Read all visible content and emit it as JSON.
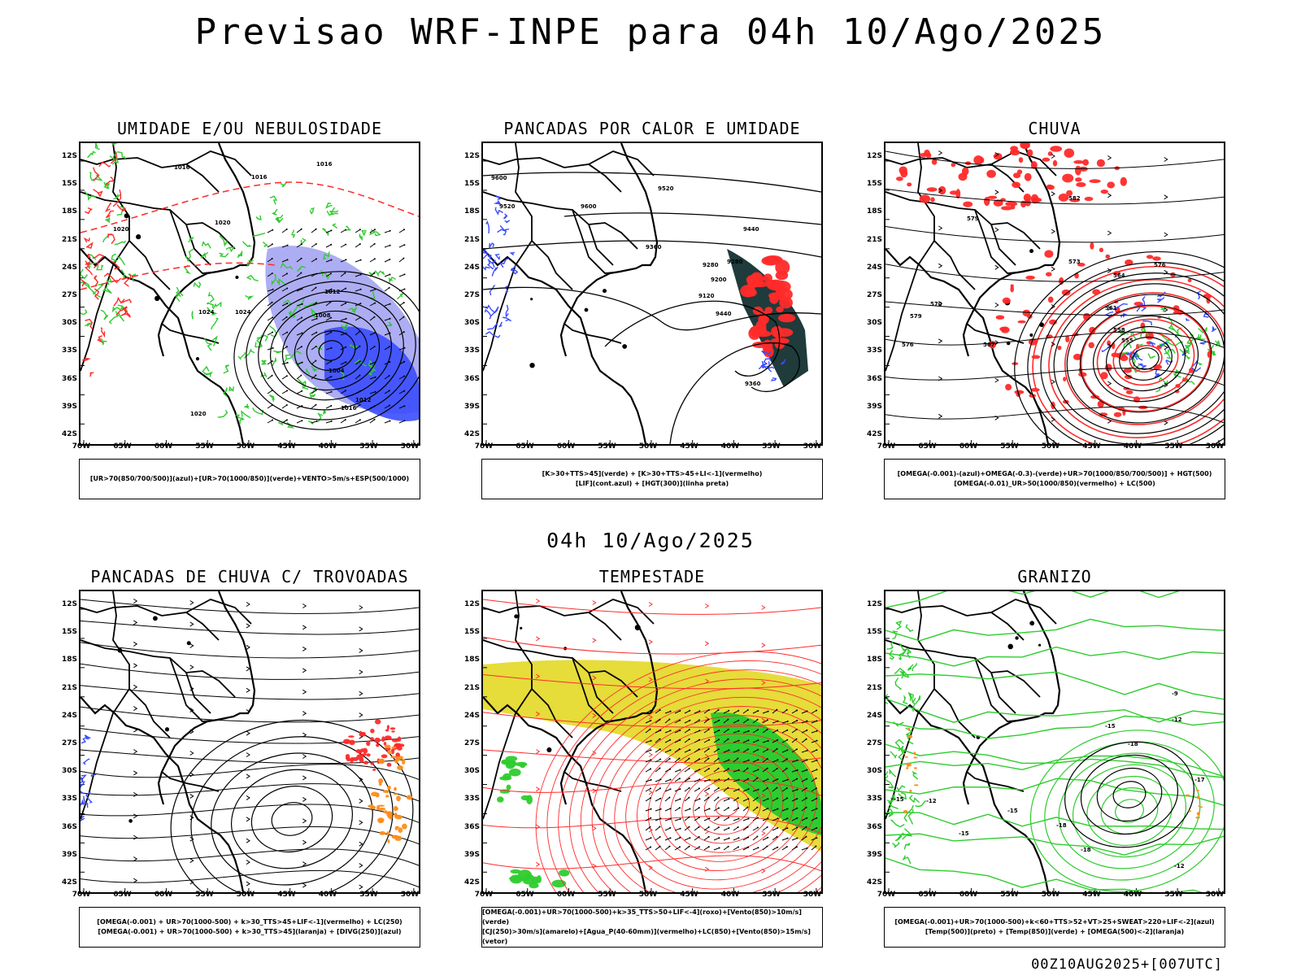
{
  "header": {
    "title": "Previsao WRF-INPE  para 04h 10/Ago/2025"
  },
  "middle": {
    "title": "04h 10/Ago/2025"
  },
  "footer": {
    "run": "00Z10AUG2025+[007UTC]"
  },
  "axes": {
    "lat_labels": [
      "12S",
      "15S",
      "18S",
      "21S",
      "24S",
      "27S",
      "30S",
      "33S",
      "36S",
      "39S",
      "42S"
    ],
    "lon_labels": [
      "70W",
      "65W",
      "60W",
      "55W",
      "50W",
      "45W",
      "40W",
      "35W",
      "30W"
    ]
  },
  "colors": {
    "red": "#ff2a2a",
    "green": "#2ecc2e",
    "blue": "#3a4cff",
    "yellow": "#e6dc3a",
    "orange": "#ff8c1a",
    "dark": "#1f3b3b",
    "black": "#000000",
    "lavender": "#8a8aee"
  },
  "panels": [
    {
      "id": "umidade",
      "title": "UMIDADE E/OU NEBULOSIDADE",
      "legend": [
        "[UR>70(850/700/500)](azul)+[UR>70(1000/850)](verde)+VENTO>5m/s+ESP(500/1000)"
      ],
      "contour_labels": [
        "1016",
        "1016",
        "1016",
        "1020",
        "1024",
        "1012",
        "1008",
        "1004",
        "1012",
        "1016",
        "1020",
        "1024",
        "1020"
      ]
    },
    {
      "id": "pancadas_calor",
      "title": "PANCADAS POR CALOR E UMIDADE",
      "legend": [
        "[K>30+TTS>45](verde) + [K>30+TTS>45+LI<-1](vermelho)",
        "[LIF](cont.azul) + [HGT(300)](linha preta)"
      ],
      "contour_labels": [
        "9600",
        "9520",
        "9440",
        "9360",
        "9280",
        "9200",
        "9120",
        "9440",
        "9360",
        "9280",
        "9520",
        "9600"
      ]
    },
    {
      "id": "chuva",
      "title": "CHUVA",
      "legend": [
        "[OMEGA(-0.001)-(azul)+OMEGA(-0.3)-(verde)+UR>70(1000/850/700/500)] + HGT(500)",
        "[OMEGA(-0.01)_UR>50(1000/850)(vermelho) + LC(500)"
      ],
      "contour_labels": [
        "582",
        "579",
        "576",
        "573",
        "570",
        "567",
        "564",
        "561",
        "558",
        "555",
        "576",
        "579"
      ]
    },
    {
      "id": "trovoadas",
      "title": "PANCADAS DE CHUVA C/ TROVOADAS",
      "legend": [
        "[OMEGA(-0.001) + UR>70(1000-500) + k>30_TTS>45+LIF<-1](vermelho) + LC(250)",
        "[OMEGA(-0.001) + UR>70(1000-500) + k>30_TTS>45](laranja) + [DIVG(250)](azul)"
      ],
      "contour_labels": []
    },
    {
      "id": "tempestade",
      "title": "TEMPESTADE",
      "legend": [
        "[OMEGA(-0.001)+UR>70(1000-500)+k>35_TTS>50+LIF<-4](roxo)+[Vento(850)>10m/s](verde)",
        "[CJ(250)>30m/s](amarelo)+[Agua_P(40-60mm)](vermelho)+LC(850)+[Vento(850)>15m/s](vetor)"
      ],
      "contour_labels": []
    },
    {
      "id": "granizo",
      "title": "GRANIZO",
      "legend": [
        "[OMEGA(-0.001)+UR>70(1000-500)+k<60+TTS>52+VT>25+SWEAT>220+LIF<-2](azul)",
        "[Temp(500)](preto) + [Temp(850)](verde) + [OMEGA(500)<-2](laranja)"
      ],
      "contour_labels": [
        "-9",
        "-12",
        "-15",
        "-18",
        "-15",
        "-18",
        "-12",
        "-18",
        "-15",
        "-17",
        "-12",
        "-15"
      ]
    }
  ]
}
